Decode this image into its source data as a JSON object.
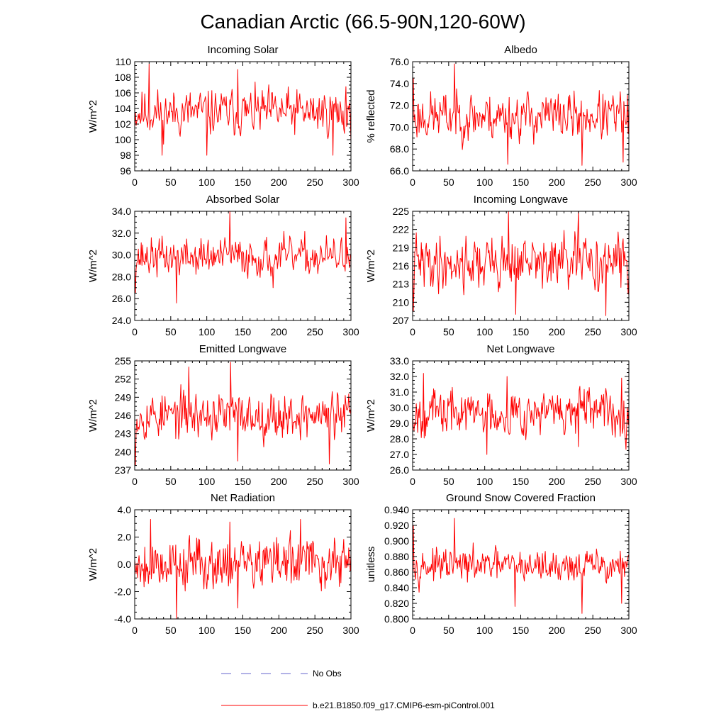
{
  "figure": {
    "title": "Canadian Arctic (66.5-90N,120-60W)",
    "legend": [
      {
        "label": "No Obs",
        "color": "#6666cc",
        "style": "dashed"
      },
      {
        "label": "b.e21.B1850.f09_g17.CMIP6-esm-piControl.001",
        "color": "#ff0000",
        "style": "solid"
      }
    ],
    "line_color": "#ff0000"
  },
  "chart_data": [
    {
      "type": "line",
      "title": "Incoming Solar",
      "xlabel": "",
      "ylabel": "W/m^2",
      "xlim": [
        0,
        300
      ],
      "ylim": [
        96,
        110
      ],
      "xticks": [
        0,
        50,
        100,
        150,
        200,
        250,
        300
      ],
      "yticks": [
        96,
        98,
        100,
        102,
        104,
        106,
        108,
        110
      ],
      "yticklabels": [
        "96",
        "98",
        "100",
        "102",
        "104",
        "106",
        "108",
        "110"
      ],
      "series": [
        {
          "name": "b.e21.B1850.f09_g17.CMIP6-esm-piControl.001",
          "mean": 103.5,
          "amp": 2.0,
          "seed": 11,
          "peaks": [
            [
              20,
              109.7
            ],
            [
              38,
              98.0
            ],
            [
              100,
              98.0
            ],
            [
              143,
              109.0
            ],
            [
              275,
              98.0
            ],
            [
              293,
              106.8
            ]
          ]
        }
      ]
    },
    {
      "type": "line",
      "title": "Albedo",
      "xlabel": "",
      "ylabel": "% reflected",
      "xlim": [
        0,
        300
      ],
      "ylim": [
        66,
        76
      ],
      "xticks": [
        0,
        50,
        100,
        150,
        200,
        250,
        300
      ],
      "yticks": [
        66,
        68,
        70,
        72,
        74,
        76
      ],
      "yticklabels": [
        "66.0",
        "68.0",
        "70.0",
        "72.0",
        "74.0",
        "76.0"
      ],
      "series": [
        {
          "name": "b.e21.B1850.f09_g17.CMIP6-esm-piControl.001",
          "mean": 71.0,
          "amp": 1.5,
          "seed": 23,
          "peaks": [
            [
              1,
              74.5
            ],
            [
              58,
              75.8
            ],
            [
              132,
              66.6
            ],
            [
              235,
              66.5
            ],
            [
              292,
              66.8
            ]
          ]
        }
      ]
    },
    {
      "type": "line",
      "title": "Absorbed Solar",
      "xlabel": "",
      "ylabel": "W/m^2",
      "xlim": [
        0,
        300
      ],
      "ylim": [
        24,
        34
      ],
      "xticks": [
        0,
        50,
        100,
        150,
        200,
        250,
        300
      ],
      "yticks": [
        24,
        26,
        28,
        30,
        32,
        34
      ],
      "yticklabels": [
        "24.0",
        "26.0",
        "28.0",
        "30.0",
        "32.0",
        "34.0"
      ],
      "series": [
        {
          "name": "b.e21.B1850.f09_g17.CMIP6-esm-piControl.001",
          "mean": 29.8,
          "amp": 1.2,
          "seed": 37,
          "peaks": [
            [
              1,
              26.5
            ],
            [
              58,
              25.6
            ],
            [
              132,
              34.0
            ],
            [
              192,
              27.0
            ],
            [
              293,
              33.4
            ]
          ]
        }
      ]
    },
    {
      "type": "line",
      "title": "Incoming Longwave",
      "xlabel": "",
      "ylabel": "W/m^2",
      "xlim": [
        0,
        300
      ],
      "ylim": [
        207,
        225
      ],
      "xticks": [
        0,
        50,
        100,
        150,
        200,
        250,
        300
      ],
      "yticks": [
        207,
        210,
        213,
        216,
        219,
        222,
        225
      ],
      "yticklabels": [
        "207",
        "210",
        "213",
        "216",
        "219",
        "222",
        "225"
      ],
      "series": [
        {
          "name": "b.e21.B1850.f09_g17.CMIP6-esm-piControl.001",
          "mean": 216.5,
          "amp": 3.0,
          "seed": 41,
          "peaks": [
            [
              1,
              208.5
            ],
            [
              133,
              225.0
            ],
            [
              143,
              208.0
            ],
            [
              230,
              225.0
            ],
            [
              268,
              207.8
            ]
          ]
        }
      ]
    },
    {
      "type": "line",
      "title": "Emitted Longwave",
      "xlabel": "",
      "ylabel": "W/m^2",
      "xlim": [
        0,
        300
      ],
      "ylim": [
        237,
        255
      ],
      "xticks": [
        0,
        50,
        100,
        150,
        200,
        250,
        300
      ],
      "yticks": [
        237,
        240,
        243,
        246,
        249,
        252,
        255
      ],
      "yticklabels": [
        "237",
        "240",
        "243",
        "246",
        "249",
        "252",
        "255"
      ],
      "series": [
        {
          "name": "b.e21.B1850.f09_g17.CMIP6-esm-piControl.001",
          "mean": 246.0,
          "amp": 2.6,
          "seed": 53,
          "peaks": [
            [
              1,
              237.8
            ],
            [
              75,
              254.0
            ],
            [
              133,
              254.8
            ],
            [
              143,
              238.5
            ],
            [
              270,
              238.0
            ]
          ]
        }
      ]
    },
    {
      "type": "line",
      "title": "Net Longwave",
      "xlabel": "",
      "ylabel": "W/m^2",
      "xlim": [
        0,
        300
      ],
      "ylim": [
        26,
        33
      ],
      "xticks": [
        0,
        50,
        100,
        150,
        200,
        250,
        300
      ],
      "yticks": [
        26,
        27,
        28,
        29,
        30,
        31,
        32,
        33
      ],
      "yticklabels": [
        "26.0",
        "27.0",
        "28.0",
        "29.0",
        "30.0",
        "31.0",
        "32.0",
        "33.0"
      ],
      "series": [
        {
          "name": "b.e21.B1850.f09_g17.CMIP6-esm-piControl.001",
          "mean": 29.7,
          "amp": 1.0,
          "seed": 67,
          "peaks": [
            [
              15,
              32.2
            ],
            [
              103,
              27.0
            ],
            [
              131,
              32.0
            ],
            [
              230,
              27.5
            ],
            [
              290,
              31.9
            ]
          ]
        }
      ]
    },
    {
      "type": "line",
      "title": "Net Radiation",
      "xlabel": "",
      "ylabel": "W/m^2",
      "xlim": [
        0,
        300
      ],
      "ylim": [
        -4,
        4
      ],
      "xticks": [
        0,
        50,
        100,
        150,
        200,
        250,
        300
      ],
      "yticks": [
        -4,
        -2,
        0,
        2,
        4
      ],
      "yticklabels": [
        "-4.0",
        "-2.0",
        "0.0",
        "2.0",
        "4.0"
      ],
      "series": [
        {
          "name": "b.e21.B1850.f09_g17.CMIP6-esm-piControl.001",
          "mean": 0.1,
          "amp": 1.3,
          "seed": 79,
          "peaks": [
            [
              22,
              3.3
            ],
            [
              58,
              -4.0
            ],
            [
              132,
              3.1
            ],
            [
              143,
              -3.2
            ],
            [
              230,
              3.3
            ]
          ]
        }
      ]
    },
    {
      "type": "line",
      "title": "Ground Snow Covered Fraction",
      "xlabel": "",
      "ylabel": "unitless",
      "xlim": [
        0,
        300
      ],
      "ylim": [
        0.8,
        0.94
      ],
      "xticks": [
        0,
        50,
        100,
        150,
        200,
        250,
        300
      ],
      "yticks": [
        0.8,
        0.82,
        0.84,
        0.86,
        0.88,
        0.9,
        0.92,
        0.94
      ],
      "yticklabels": [
        "0.800",
        "0.820",
        "0.840",
        "0.860",
        "0.880",
        "0.900",
        "0.920",
        "0.940"
      ],
      "series": [
        {
          "name": "b.e21.B1850.f09_g17.CMIP6-esm-piControl.001",
          "mean": 0.868,
          "amp": 0.014,
          "seed": 97,
          "peaks": [
            [
              1,
              0.92
            ],
            [
              58,
              0.929
            ],
            [
              142,
              0.816
            ],
            [
              235,
              0.807
            ],
            [
              290,
              0.82
            ]
          ]
        }
      ]
    }
  ]
}
